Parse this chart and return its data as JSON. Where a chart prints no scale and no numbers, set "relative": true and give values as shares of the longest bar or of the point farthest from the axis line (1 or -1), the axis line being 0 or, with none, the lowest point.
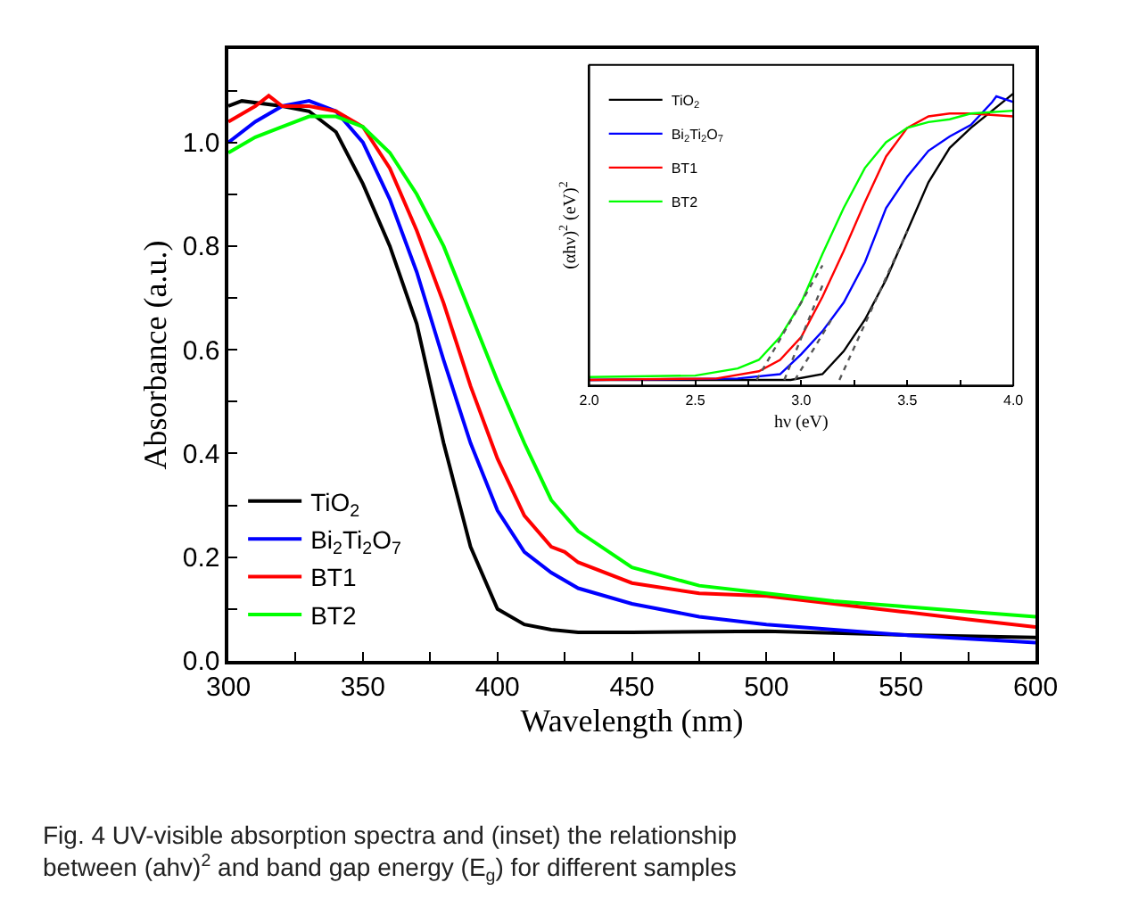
{
  "chart_data": [
    {
      "type": "line",
      "xlabel": "Wavelength (nm)",
      "ylabel": "Absorbance (a.u.)",
      "xlim": [
        300,
        600
      ],
      "xticks": [
        300,
        {
          "value": 325,
          "label": null
        },
        350,
        {
          "value": 375,
          "label": null
        },
        400,
        {
          "value": 425,
          "label": null
        },
        450,
        {
          "value": 475,
          "label": null
        },
        500,
        {
          "value": 525,
          "label": null
        },
        550,
        {
          "value": 575,
          "label": null
        },
        600
      ],
      "ylim": [
        0,
        1.18
      ],
      "yticks": [
        {
          "value": 0,
          "label": "0.0"
        },
        {
          "value": 0.1,
          "label": null
        },
        {
          "value": 0.2,
          "label": "0.2"
        },
        {
          "value": 0.3,
          "label": null
        },
        {
          "value": 0.4,
          "label": "0.4"
        },
        {
          "value": 0.5,
          "label": null
        },
        {
          "value": 0.6,
          "label": "0.6"
        },
        {
          "value": 0.7,
          "label": null
        },
        {
          "value": 0.8,
          "label": "0.8"
        },
        {
          "value": 0.9,
          "label": null
        },
        {
          "value": 1.0,
          "label": "1.0"
        },
        {
          "value": 1.1,
          "label": null
        }
      ],
      "legend": "bottom left",
      "line_style": "solid",
      "marker": "none",
      "annotations": [
        "Fig. 4 UV-visible absorption spectra and (inset) the relationship between (ahv)$^{2}$ and band gap energy (E$_{g}$) for different samples"
      ],
      "series": [
        {
          "name": "TiO$_{2}$",
          "color": "#000000",
          "x": [
            300,
            305,
            320,
            330,
            340,
            350,
            360,
            370,
            380,
            390,
            400,
            410,
            420,
            430,
            450,
            500,
            550,
            600
          ],
          "values": [
            1.07,
            1.08,
            1.07,
            1.06,
            1.02,
            0.92,
            0.8,
            0.65,
            0.42,
            0.22,
            0.1,
            0.07,
            0.06,
            0.055,
            0.055,
            0.057,
            0.05,
            0.045
          ]
        },
        {
          "name": "Bi$_{2}$Ti$_{2}$O$_{7}$",
          "color": "#0000ff",
          "x": [
            300,
            310,
            320,
            330,
            340,
            350,
            360,
            370,
            380,
            390,
            400,
            410,
            420,
            430,
            450,
            475,
            500,
            550,
            600
          ],
          "values": [
            1.0,
            1.04,
            1.07,
            1.08,
            1.06,
            1.0,
            0.89,
            0.75,
            0.58,
            0.42,
            0.29,
            0.21,
            0.17,
            0.14,
            0.11,
            0.085,
            0.07,
            0.05,
            0.035
          ]
        },
        {
          "name": "BT1",
          "color": "#ff0000",
          "x": [
            300,
            310,
            315,
            320,
            330,
            340,
            350,
            360,
            370,
            380,
            390,
            400,
            410,
            420,
            425,
            430,
            450,
            475,
            500,
            525,
            550,
            575,
            600
          ],
          "values": [
            1.04,
            1.07,
            1.09,
            1.07,
            1.07,
            1.06,
            1.03,
            0.95,
            0.83,
            0.69,
            0.53,
            0.39,
            0.28,
            0.22,
            0.21,
            0.19,
            0.15,
            0.13,
            0.125,
            0.11,
            0.095,
            0.08,
            0.065
          ]
        },
        {
          "name": "BT2",
          "color": "#00ff00",
          "x": [
            300,
            310,
            320,
            330,
            340,
            350,
            360,
            370,
            380,
            390,
            400,
            410,
            420,
            430,
            450,
            475,
            500,
            525,
            550,
            575,
            600
          ],
          "values": [
            0.98,
            1.01,
            1.03,
            1.05,
            1.05,
            1.03,
            0.98,
            0.9,
            0.8,
            0.67,
            0.54,
            0.42,
            0.31,
            0.25,
            0.18,
            0.145,
            0.13,
            0.115,
            0.105,
            0.095,
            0.085
          ]
        }
      ]
    },
    {
      "type": "line",
      "relative": true,
      "xlabel": "hν (eV)",
      "ylabel": "(αhν)$^{2}$ (eV)$^{2}$",
      "xlim": [
        2.0,
        4.0
      ],
      "xticks": [
        {
          "value": 2.0,
          "label": "2.0"
        },
        {
          "value": 2.25,
          "label": null
        },
        {
          "value": 2.5,
          "label": "2.5"
        },
        {
          "value": 2.75,
          "label": null
        },
        {
          "value": 3.0,
          "label": "3.0"
        },
        {
          "value": 3.25,
          "label": null
        },
        {
          "value": 3.5,
          "label": "3.5"
        },
        {
          "value": 3.75,
          "label": null
        },
        {
          "value": 4.0,
          "label": "4.0"
        }
      ],
      "legend": "top left",
      "marker": "none",
      "series": [
        {
          "name": "TiO$_{2}$",
          "color": "#000000",
          "x": [
            2.0,
            2.5,
            2.95,
            3.1,
            3.2,
            3.3,
            3.4,
            3.5,
            3.6,
            3.7,
            3.8,
            3.9,
            4.0
          ],
          "values": [
            0,
            0,
            0,
            0.02,
            0.1,
            0.21,
            0.35,
            0.52,
            0.69,
            0.81,
            0.88,
            0.94,
            1.0
          ]
        },
        {
          "name": "Bi$_{2}$Ti$_{2}$O$_{7}$",
          "color": "#0000ff",
          "x": [
            2.0,
            2.7,
            2.9,
            3.0,
            3.1,
            3.2,
            3.3,
            3.4,
            3.5,
            3.6,
            3.7,
            3.8,
            3.9,
            3.92,
            4.0
          ],
          "values": [
            0,
            0.005,
            0.02,
            0.09,
            0.17,
            0.27,
            0.41,
            0.6,
            0.71,
            0.8,
            0.85,
            0.89,
            0.97,
            0.99,
            0.97
          ]
        },
        {
          "name": "BT1",
          "color": "#ff0000",
          "x": [
            2.0,
            2.6,
            2.8,
            2.9,
            3.0,
            3.1,
            3.2,
            3.3,
            3.4,
            3.5,
            3.6,
            3.7,
            3.8,
            4.0
          ],
          "values": [
            0,
            0.005,
            0.03,
            0.07,
            0.15,
            0.29,
            0.45,
            0.62,
            0.78,
            0.88,
            0.92,
            0.93,
            0.93,
            0.92
          ]
        },
        {
          "name": "BT2",
          "color": "#00ff00",
          "x": [
            2.0,
            2.5,
            2.7,
            2.8,
            2.9,
            3.0,
            3.1,
            3.2,
            3.3,
            3.4,
            3.5,
            3.6,
            3.7,
            3.8,
            4.0
          ],
          "values": [
            0.01,
            0.015,
            0.04,
            0.07,
            0.15,
            0.27,
            0.44,
            0.6,
            0.74,
            0.83,
            0.88,
            0.9,
            0.91,
            0.93,
            0.94
          ]
        },
        {
          "type": "line",
          "line_style": "dotted",
          "color": "#555555",
          "x": [
            2.79,
            3.1
          ],
          "values": [
            0,
            0.4
          ]
        },
        {
          "type": "line",
          "line_style": "dotted",
          "color": "#555555",
          "x": [
            2.92,
            3.1
          ],
          "values": [
            0,
            0.33
          ]
        },
        {
          "type": "line",
          "line_style": "dotted",
          "color": "#555555",
          "x": [
            2.97,
            3.15
          ],
          "values": [
            0,
            0.22
          ]
        },
        {
          "type": "line",
          "line_style": "dotted",
          "color": "#555555",
          "x": [
            3.18,
            3.5
          ],
          "values": [
            0,
            0.52
          ]
        }
      ]
    }
  ]
}
